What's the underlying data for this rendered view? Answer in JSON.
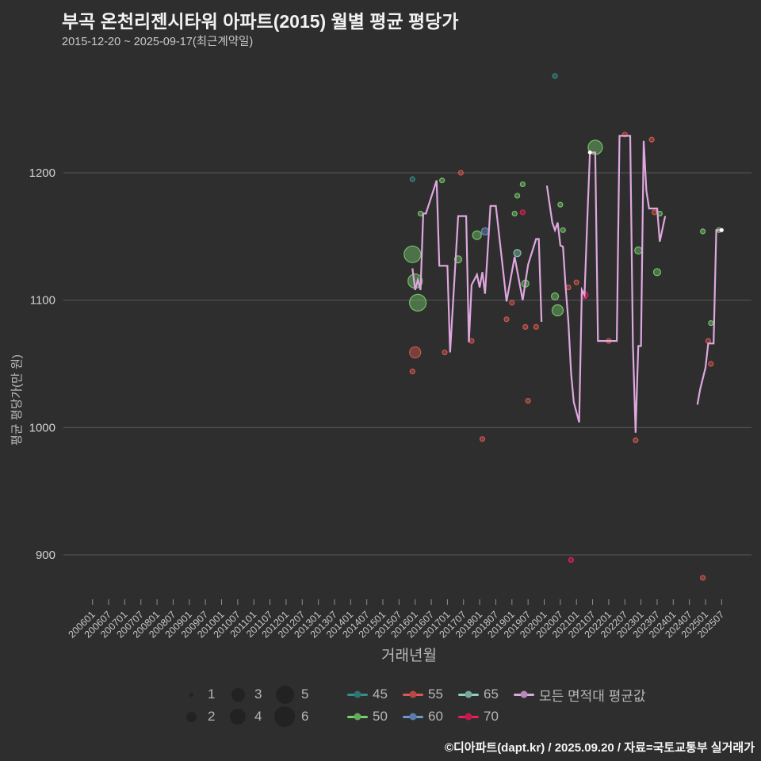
{
  "header": {
    "title": "부곡 온천리젠시타워 아파트(2015) 월별 평균 평당가",
    "subtitle": "2015-12-20 ~ 2025-09-17(최근계약일)"
  },
  "footer": {
    "credit": "©디아파트(dapt.kr) / 2025.09.20 / 자료=국토교통부 실거래가"
  },
  "legend": {
    "sizes": [
      "1",
      "2",
      "3",
      "4",
      "5",
      "6"
    ],
    "areas": [
      "45",
      "50",
      "55",
      "60",
      "65",
      "70"
    ],
    "line_label": "모든 면적대 평균값"
  },
  "chart_data": {
    "type": "scatter",
    "title": "부곡 온천리젠시타워 아파트(2015) 월별 평균 평당가",
    "subtitle": "2015-12-20 ~ 2025-09-17(최근계약일)",
    "xlabel": "거래년월",
    "ylabel": "평균 평당가(만 원)",
    "ylim": [
      850,
      1290
    ],
    "grid": "horizontal-only",
    "legend_position": "bottom",
    "yticks": [
      1200,
      1100,
      1000,
      900
    ],
    "xticks": [
      "200601",
      "200607",
      "200701",
      "200707",
      "200801",
      "200807",
      "200901",
      "200907",
      "201001",
      "201007",
      "201101",
      "201107",
      "201201",
      "201207",
      "201301",
      "201307",
      "201401",
      "201407",
      "201501",
      "201507",
      "201601",
      "201607",
      "201701",
      "201707",
      "201801",
      "201807",
      "201901",
      "201907",
      "202001",
      "202007",
      "202101",
      "202107",
      "202201",
      "202207",
      "202301",
      "202307",
      "202401",
      "202407",
      "202501",
      "202507"
    ],
    "series_colors": {
      "45": "#378f88",
      "50": "#79cf6e",
      "55": "#dc5a52",
      "60": "#6f97cf",
      "65": "#8fcfc0",
      "70": "#ec2059",
      "line": "#dfa7df",
      "line_end": "#ffffff"
    },
    "scatter_note": "each point = [yyyymm, avg price per pyeong (10k KRW), area-class series, bubble size 1-6]",
    "scatter": [
      [
        201512,
        1195,
        "45",
        1
      ],
      [
        201512,
        1136,
        "50",
        6
      ],
      [
        201512,
        1044,
        "55",
        1
      ],
      [
        201601,
        1115,
        "50",
        5
      ],
      [
        201601,
        1059,
        "55",
        4
      ],
      [
        201602,
        1098,
        "50",
        6
      ],
      [
        201603,
        1168,
        "50",
        1
      ],
      [
        201611,
        1194,
        "50",
        1
      ],
      [
        201612,
        1059,
        "55",
        1
      ],
      [
        201705,
        1132,
        "50",
        2
      ],
      [
        201706,
        1200,
        "55",
        1
      ],
      [
        201710,
        1068,
        "55",
        1
      ],
      [
        201712,
        1151,
        "50",
        3
      ],
      [
        201802,
        991,
        "55",
        1
      ],
      [
        201803,
        1154,
        "60",
        2
      ],
      [
        201811,
        1085,
        "55",
        1
      ],
      [
        201901,
        1098,
        "55",
        1
      ],
      [
        201902,
        1168,
        "50",
        1
      ],
      [
        201903,
        1182,
        "50",
        1
      ],
      [
        201903,
        1137,
        "65",
        2
      ],
      [
        201905,
        1191,
        "50",
        1
      ],
      [
        201905,
        1169,
        "70",
        1
      ],
      [
        201906,
        1113,
        "50",
        2
      ],
      [
        201906,
        1079,
        "55",
        1
      ],
      [
        201907,
        1021,
        "55",
        1
      ],
      [
        201910,
        1079,
        "55",
        1
      ],
      [
        202005,
        1276,
        "45",
        1
      ],
      [
        202005,
        1103,
        "50",
        2
      ],
      [
        202006,
        1092,
        "50",
        4
      ],
      [
        202007,
        1175,
        "50",
        1
      ],
      [
        202008,
        1155,
        "50",
        1
      ],
      [
        202010,
        1110,
        "55",
        1
      ],
      [
        202011,
        896,
        "70",
        1
      ],
      [
        202101,
        1114,
        "55",
        1
      ],
      [
        202104,
        1104,
        "70",
        2
      ],
      [
        202108,
        1220,
        "50",
        5
      ],
      [
        202201,
        1068,
        "55",
        1
      ],
      [
        202207,
        1230,
        "55",
        1
      ],
      [
        202211,
        990,
        "55",
        1
      ],
      [
        202212,
        1139,
        "50",
        2
      ],
      [
        202305,
        1226,
        "55",
        1
      ],
      [
        202306,
        1169,
        "55",
        1
      ],
      [
        202307,
        1122,
        "50",
        2
      ],
      [
        202308,
        1168,
        "50",
        1
      ],
      [
        202412,
        1154,
        "50",
        1
      ],
      [
        202412,
        882,
        "55",
        1
      ],
      [
        202502,
        1068,
        "55",
        1
      ],
      [
        202503,
        1082,
        "50",
        1
      ],
      [
        202503,
        1050,
        "55",
        1
      ],
      [
        202506,
        1155,
        "50",
        1
      ]
    ],
    "line_name": "모든 면적대 평균값",
    "line_segments": [
      [
        [
          201512,
          1125
        ],
        [
          201601,
          1108
        ],
        [
          201602,
          1116
        ],
        [
          201603,
          1108
        ],
        [
          201604,
          1168
        ],
        [
          201605,
          1168
        ],
        [
          201609,
          1194
        ],
        [
          201610,
          1127
        ],
        [
          201701,
          1127
        ],
        [
          201702,
          1059
        ],
        [
          201705,
          1166
        ],
        [
          201708,
          1166
        ],
        [
          201709,
          1067
        ],
        [
          201710,
          1112
        ],
        [
          201712,
          1120
        ],
        [
          201801,
          1110
        ],
        [
          201802,
          1122
        ],
        [
          201803,
          1105
        ],
        [
          201805,
          1174
        ],
        [
          201807,
          1174
        ],
        [
          201809,
          1137
        ],
        [
          201811,
          1099
        ],
        [
          201902,
          1134
        ],
        [
          201905,
          1100
        ],
        [
          201907,
          1128
        ],
        [
          201910,
          1148
        ],
        [
          201911,
          1148
        ],
        [
          201912,
          1083
        ]
      ],
      [
        [
          202002,
          1190
        ],
        [
          202004,
          1161
        ],
        [
          202005,
          1155
        ],
        [
          202006,
          1161
        ],
        [
          202007,
          1143
        ],
        [
          202008,
          1142
        ],
        [
          202009,
          1110
        ],
        [
          202010,
          1083
        ],
        [
          202011,
          1043
        ],
        [
          202012,
          1020
        ],
        [
          202102,
          1004
        ],
        [
          202103,
          1108
        ],
        [
          202104,
          1104
        ],
        [
          202105,
          1162
        ],
        [
          202106,
          1216
        ],
        [
          202108,
          1216
        ],
        [
          202109,
          1068
        ],
        [
          202204,
          1068
        ],
        [
          202205,
          1229
        ],
        [
          202209,
          1229
        ],
        [
          202210,
          1065
        ],
        [
          202211,
          996
        ],
        [
          202212,
          1064
        ],
        [
          202301,
          1064
        ],
        [
          202302,
          1225
        ],
        [
          202303,
          1186
        ],
        [
          202304,
          1172
        ],
        [
          202307,
          1172
        ],
        [
          202308,
          1146
        ],
        [
          202310,
          1166
        ]
      ],
      [
        [
          202410,
          1018
        ],
        [
          202411,
          1030
        ],
        [
          202501,
          1047
        ],
        [
          202502,
          1066
        ],
        [
          202504,
          1066
        ],
        [
          202505,
          1155
        ],
        [
          202507,
          1155
        ]
      ]
    ]
  }
}
